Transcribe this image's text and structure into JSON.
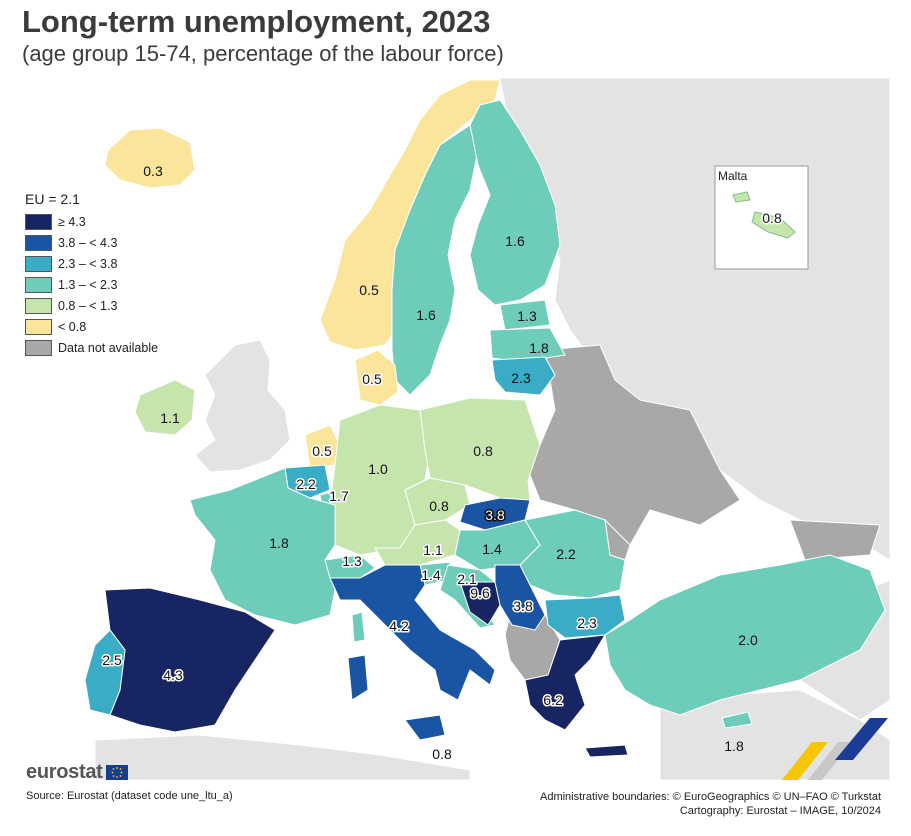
{
  "header": {
    "title": "Long-term unemployment, 2023",
    "subtitle": "(age group 15-74, percentage of the labour force)"
  },
  "legend": {
    "heading": "EU = 2.1",
    "classes": [
      {
        "label": "≥ 4.3",
        "color": "#172562"
      },
      {
        "label": "3.8 – < 4.3",
        "color": "#1a55a3"
      },
      {
        "label": "2.3 – < 3.8",
        "color": "#3aacc6"
      },
      {
        "label": "1.3 – < 2.3",
        "color": "#6ecdba"
      },
      {
        "label": "0.8 – < 1.3",
        "color": "#c6e5ac"
      },
      {
        "label": "< 0.8",
        "color": "#fbe59a"
      },
      {
        "label": "Data not available",
        "color": "#a8a8a8"
      }
    ]
  },
  "colors": {
    "water": "#ffffff",
    "non_eu": "#e3e3e3",
    "border": "#ffffff"
  },
  "countries": [
    {
      "name": "Iceland",
      "value": "0.3"
    },
    {
      "name": "Norway",
      "value": "0.5"
    },
    {
      "name": "Sweden",
      "value": "1.6"
    },
    {
      "name": "Finland",
      "value": "1.6"
    },
    {
      "name": "Estonia",
      "value": "1.3"
    },
    {
      "name": "Latvia",
      "value": "1.8"
    },
    {
      "name": "Lithuania",
      "value": "2.3"
    },
    {
      "name": "Denmark",
      "value": "0.5"
    },
    {
      "name": "Ireland",
      "value": "1.1"
    },
    {
      "name": "Netherlands",
      "value": "0.5"
    },
    {
      "name": "Belgium",
      "value": "2.2"
    },
    {
      "name": "Luxembourg",
      "value": "1.7"
    },
    {
      "name": "Germany",
      "value": "1.0"
    },
    {
      "name": "Poland",
      "value": "0.8"
    },
    {
      "name": "Czechia",
      "value": "0.8"
    },
    {
      "name": "Slovakia",
      "value": "3.8"
    },
    {
      "name": "France",
      "value": "1.8"
    },
    {
      "name": "Switzerland",
      "value": "1.3"
    },
    {
      "name": "Austria",
      "value": "1.1"
    },
    {
      "name": "Hungary",
      "value": "1.4"
    },
    {
      "name": "Romania",
      "value": "2.2"
    },
    {
      "name": "Slovenia",
      "value": "1.4"
    },
    {
      "name": "Croatia",
      "value": "2.1"
    },
    {
      "name": "Bosnia and Herzegovina",
      "value": "9.6"
    },
    {
      "name": "Serbia",
      "value": "3.8"
    },
    {
      "name": "Bulgaria",
      "value": "2.3"
    },
    {
      "name": "Italy",
      "value": "4.2"
    },
    {
      "name": "Spain",
      "value": "4.3"
    },
    {
      "name": "Portugal",
      "value": "2.5"
    },
    {
      "name": "Greece",
      "value": "6.2"
    },
    {
      "name": "Türkiye",
      "value": "2.0"
    },
    {
      "name": "Malta",
      "value": "0.8"
    },
    {
      "name": "Cyprus",
      "value": "1.8"
    }
  ],
  "inset": {
    "title": "Malta"
  },
  "footer": {
    "brand": "eurostat",
    "source": "Source: Eurostat (dataset code une_ltu_a)",
    "credit_line1": "Administrative boundaries: © EuroGeographics © UN–FAO © Turkstat",
    "credit_line2": "Cartography: Eurostat – IMAGE, 10/2024"
  }
}
